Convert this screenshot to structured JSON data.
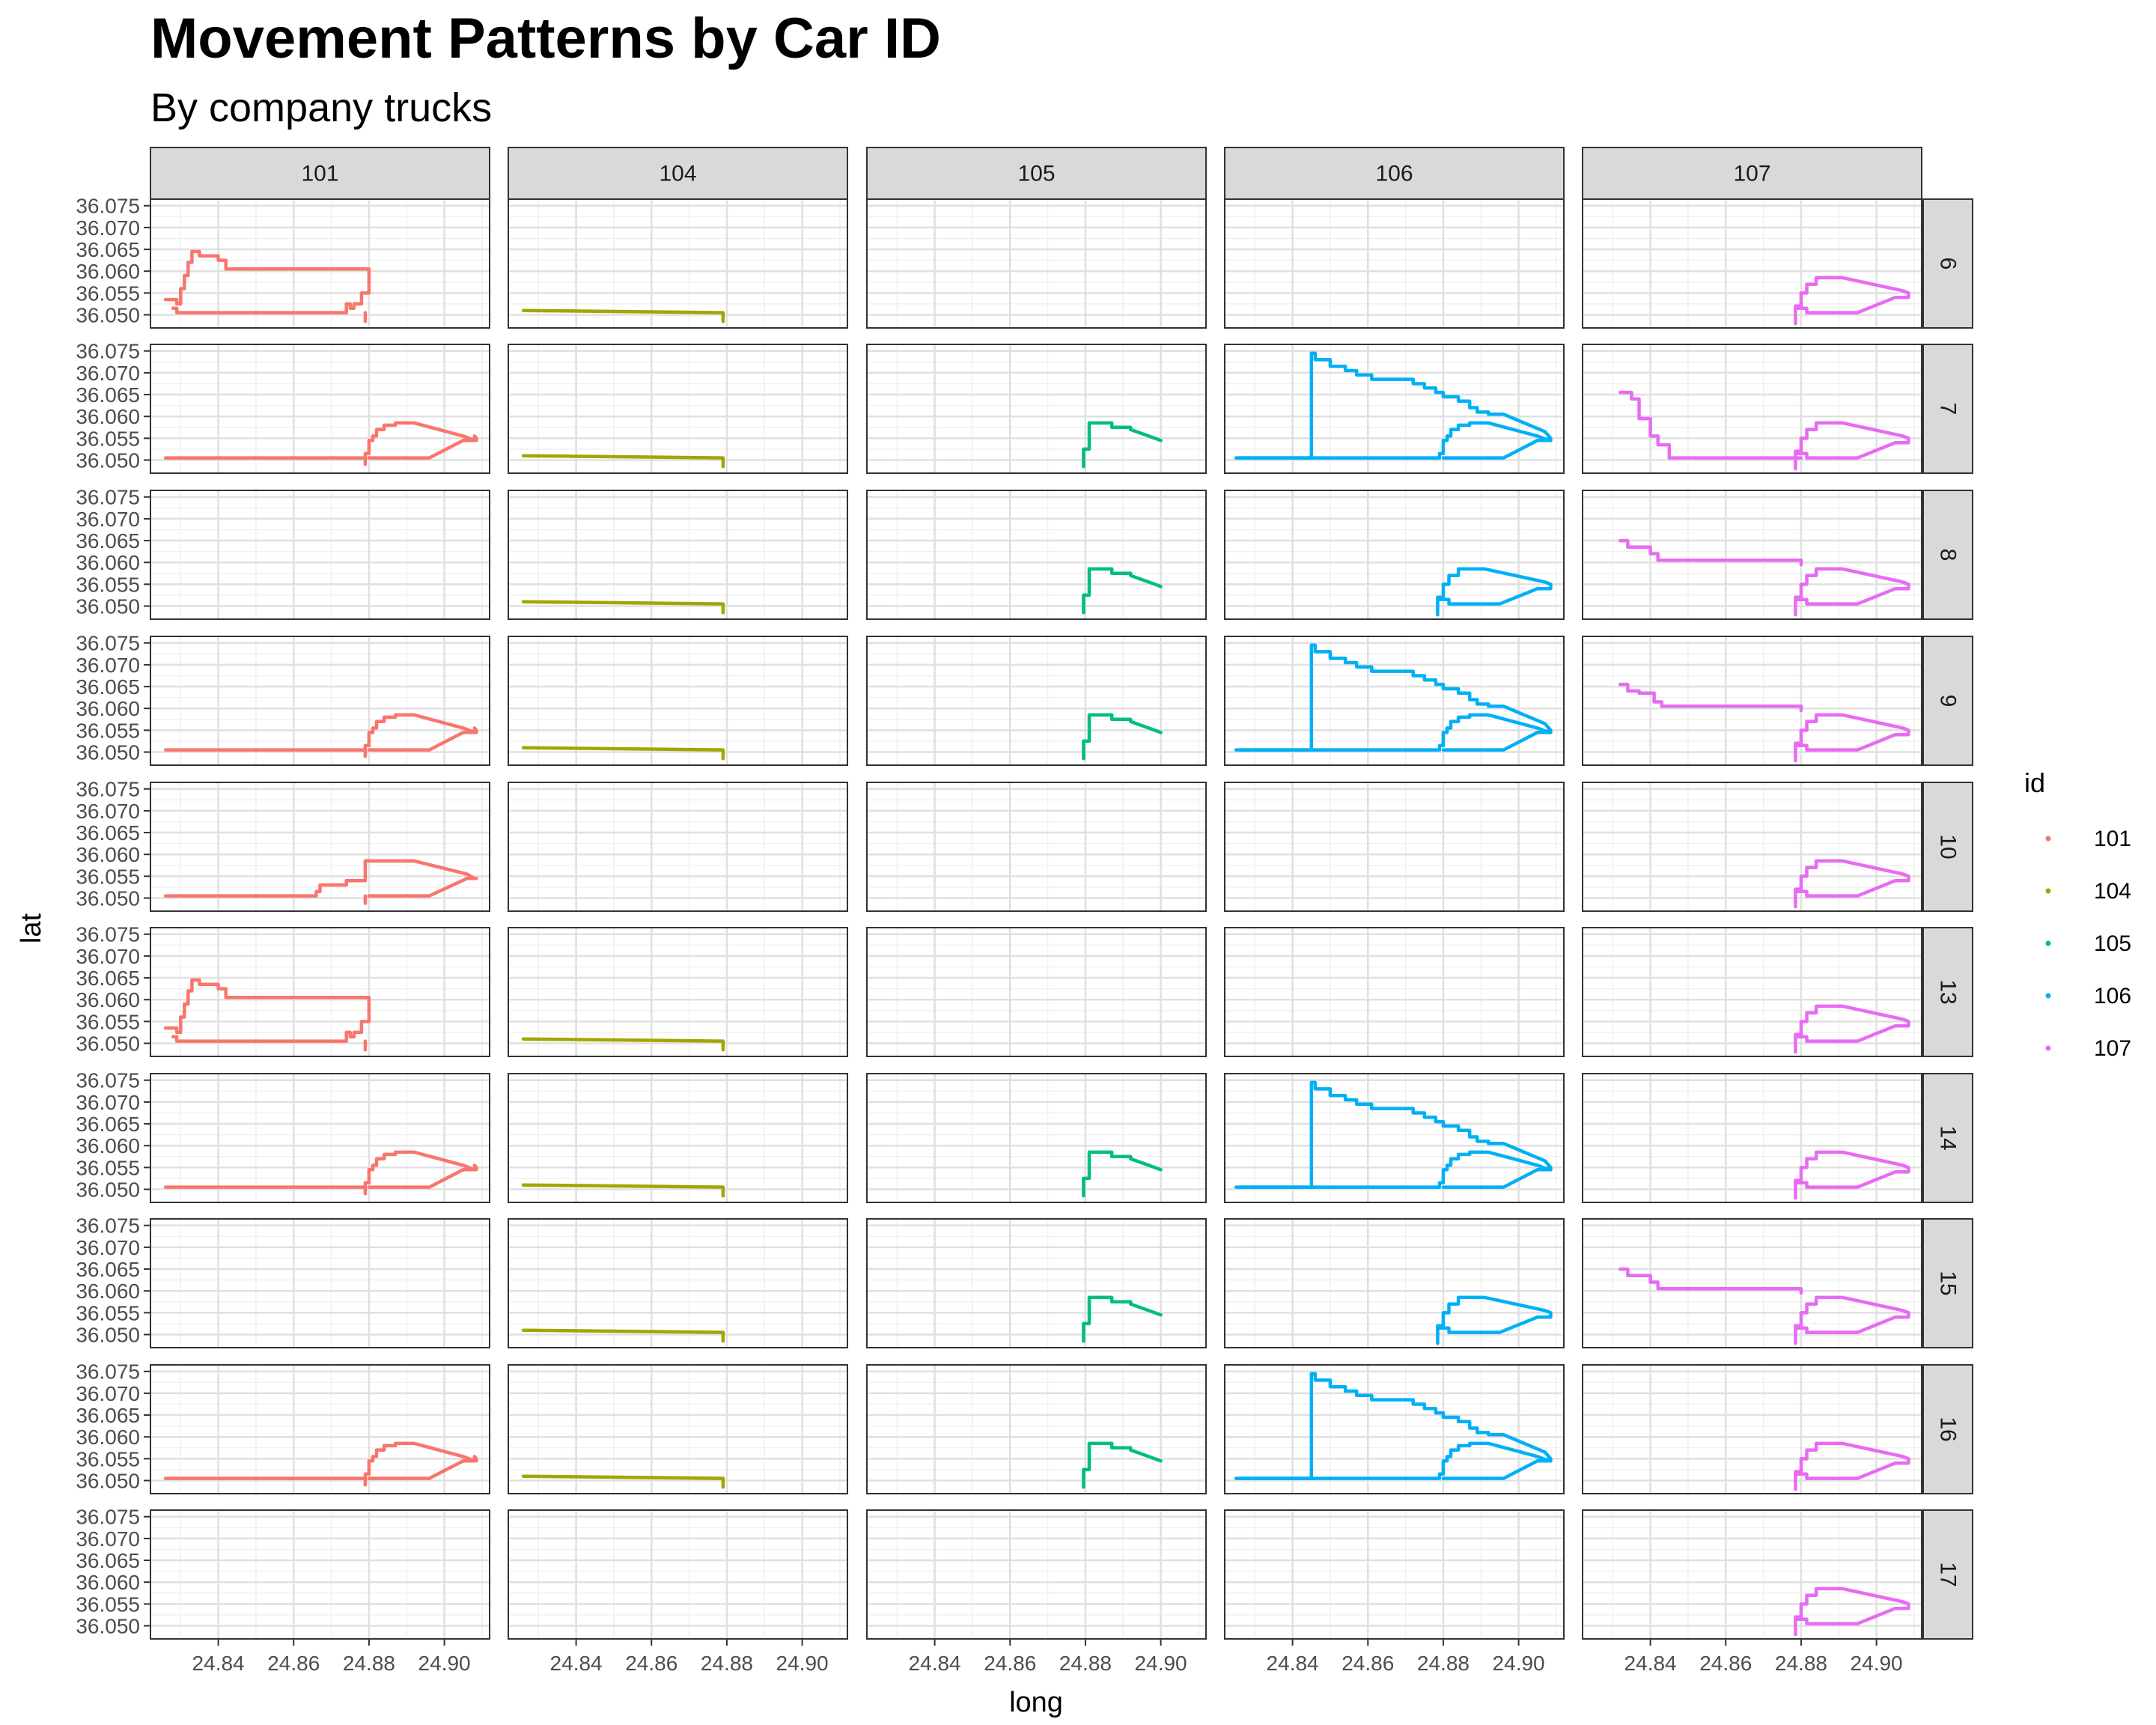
{
  "chart_data": {
    "type": "line",
    "title": "Movement Patterns by Car ID",
    "subtitle": "By company trucks",
    "xlabel": "long",
    "ylabel": "lat",
    "xlim": [
      24.822,
      24.912
    ],
    "ylim": [
      36.047,
      36.0765
    ],
    "x_ticks": [
      "24.84",
      "24.86",
      "24.88",
      "24.90"
    ],
    "y_ticks": [
      "36.050",
      "36.055",
      "36.060",
      "36.065",
      "36.070",
      "36.075"
    ],
    "grid": true,
    "columns": [
      "101",
      "104",
      "105",
      "106",
      "107"
    ],
    "rows": [
      "6",
      "7",
      "8",
      "9",
      "10",
      "13",
      "14",
      "15",
      "16",
      "17"
    ],
    "legend": {
      "title": "id",
      "position": "right",
      "entries": [
        "101",
        "104",
        "105",
        "106",
        "107"
      ]
    },
    "colors": {
      "101": "#F8766D",
      "104": "#A3A500",
      "105": "#00BF7D",
      "106": "#00B0F6",
      "107": "#E76BF3"
    },
    "routes": {
      "A": [
        [
          24.826,
          36.0535
        ],
        [
          24.829,
          36.0535
        ],
        [
          24.829,
          36.0525
        ],
        [
          24.83,
          36.0525
        ],
        [
          24.83,
          36.056
        ],
        [
          24.831,
          36.056
        ],
        [
          24.831,
          36.059
        ],
        [
          24.832,
          36.059
        ],
        [
          24.832,
          36.062
        ],
        [
          24.833,
          36.062
        ],
        [
          24.833,
          36.0645
        ],
        [
          24.835,
          36.0645
        ],
        [
          24.835,
          36.0635
        ],
        [
          24.84,
          36.0635
        ],
        [
          24.84,
          36.0625
        ],
        [
          24.842,
          36.0625
        ],
        [
          24.842,
          36.0605
        ],
        [
          24.88,
          36.0605
        ],
        [
          24.88,
          36.055
        ],
        [
          24.878,
          36.055
        ],
        [
          24.878,
          36.0525
        ],
        [
          24.876,
          36.0525
        ],
        [
          24.876,
          36.0515
        ],
        [
          24.875,
          36.0515
        ],
        [
          24.875,
          36.0525
        ],
        [
          24.874,
          36.0525
        ],
        [
          24.874,
          36.0505
        ],
        [
          24.829,
          36.0505
        ],
        [
          24.829,
          36.0515
        ],
        [
          24.828,
          36.0515
        ]
      ],
      "A_tail": [
        [
          24.879,
          36.0505
        ],
        [
          24.879,
          36.0485
        ]
      ],
      "B": [
        [
          24.826,
          36.0505
        ],
        [
          24.879,
          36.0505
        ],
        [
          24.879,
          36.0515
        ],
        [
          24.88,
          36.0515
        ],
        [
          24.88,
          36.0525
        ],
        [
          24.88,
          36.0545
        ],
        [
          24.881,
          36.0545
        ],
        [
          24.881,
          36.0555
        ],
        [
          24.882,
          36.0555
        ],
        [
          24.882,
          36.057
        ],
        [
          24.884,
          36.057
        ],
        [
          24.884,
          36.058
        ],
        [
          24.887,
          36.058
        ],
        [
          24.887,
          36.0585
        ],
        [
          24.892,
          36.0585
        ],
        [
          24.905,
          36.0555
        ],
        [
          24.908,
          36.0545
        ],
        [
          24.908,
          36.0555
        ],
        [
          24.9085,
          36.055
        ],
        [
          24.9085,
          36.0545
        ],
        [
          24.905,
          36.0545
        ],
        [
          24.896,
          36.0505
        ],
        [
          24.882,
          36.0505
        ],
        [
          24.88,
          36.0505
        ]
      ],
      "B_tail": [
        [
          24.879,
          36.0505
        ],
        [
          24.879,
          36.049
        ]
      ],
      "C": [
        [
          24.826,
          36.051
        ],
        [
          24.879,
          36.0505
        ],
        [
          24.879,
          36.0485
        ]
      ],
      "D": [
        [
          24.8795,
          36.0485
        ],
        [
          24.8795,
          36.0525
        ],
        [
          24.881,
          36.0525
        ],
        [
          24.881,
          36.0585
        ],
        [
          24.887,
          36.0585
        ],
        [
          24.887,
          36.0575
        ],
        [
          24.892,
          36.0575
        ],
        [
          24.892,
          36.057
        ],
        [
          24.9,
          36.0545
        ]
      ],
      "E": [
        [
          24.825,
          36.0505
        ],
        [
          24.845,
          36.0505
        ],
        [
          24.845,
          36.0745
        ],
        [
          24.846,
          36.0745
        ],
        [
          24.846,
          36.073
        ],
        [
          24.85,
          36.073
        ],
        [
          24.85,
          36.0715
        ],
        [
          24.854,
          36.0715
        ],
        [
          24.854,
          36.0705
        ],
        [
          24.857,
          36.0705
        ],
        [
          24.857,
          36.0695
        ],
        [
          24.861,
          36.0695
        ],
        [
          24.861,
          36.0685
        ],
        [
          24.872,
          36.0685
        ],
        [
          24.872,
          36.0675
        ],
        [
          24.875,
          36.0675
        ],
        [
          24.875,
          36.0665
        ],
        [
          24.878,
          36.0665
        ],
        [
          24.878,
          36.0655
        ],
        [
          24.88,
          36.0655
        ],
        [
          24.88,
          36.0645
        ],
        [
          24.884,
          36.0645
        ],
        [
          24.884,
          36.0635
        ],
        [
          24.887,
          36.0635
        ],
        [
          24.887,
          36.062
        ],
        [
          24.889,
          36.062
        ],
        [
          24.889,
          36.061
        ],
        [
          24.892,
          36.061
        ],
        [
          24.892,
          36.0605
        ],
        [
          24.896,
          36.0605
        ],
        [
          24.907,
          36.0565
        ],
        [
          24.908,
          36.0555
        ],
        [
          24.9085,
          36.0545
        ]
      ],
      "F": [
        [
          24.8785,
          36.05
        ],
        [
          24.8785,
          36.052
        ],
        [
          24.88,
          36.052
        ],
        [
          24.88,
          36.055
        ],
        [
          24.8815,
          36.055
        ],
        [
          24.8815,
          36.057
        ],
        [
          24.884,
          36.057
        ],
        [
          24.884,
          36.0585
        ],
        [
          24.891,
          36.0585
        ],
        [
          24.907,
          36.0555
        ],
        [
          24.9085,
          36.055
        ],
        [
          24.9085,
          36.054
        ],
        [
          24.905,
          36.054
        ],
        [
          24.895,
          36.0505
        ],
        [
          24.8815,
          36.0505
        ],
        [
          24.8815,
          36.0515
        ],
        [
          24.8785,
          36.0515
        ]
      ],
      "F_tail": [
        [
          24.8785,
          36.05
        ],
        [
          24.8785,
          36.048
        ]
      ],
      "G": [
        [
          24.832,
          36.065
        ],
        [
          24.834,
          36.065
        ],
        [
          24.834,
          36.0635
        ],
        [
          24.84,
          36.0635
        ],
        [
          24.84,
          36.062
        ],
        [
          24.842,
          36.062
        ],
        [
          24.842,
          36.0605
        ],
        [
          24.88,
          36.0605
        ],
        [
          24.88,
          36.0595
        ]
      ],
      "H": [
        [
          24.826,
          36.0505
        ],
        [
          24.866,
          36.0505
        ],
        [
          24.866,
          36.0515
        ],
        [
          24.867,
          36.0515
        ],
        [
          24.867,
          36.053
        ],
        [
          24.874,
          36.053
        ],
        [
          24.874,
          36.054
        ],
        [
          24.879,
          36.054
        ],
        [
          24.879,
          36.0585
        ],
        [
          24.892,
          36.0585
        ],
        [
          24.906,
          36.0555
        ],
        [
          24.908,
          36.0545
        ],
        [
          24.9085,
          36.0545
        ],
        [
          24.906,
          36.0545
        ],
        [
          24.896,
          36.0505
        ],
        [
          24.885,
          36.0505
        ],
        [
          24.88,
          36.0505
        ]
      ],
      "H_tail": [
        [
          24.879,
          36.0505
        ],
        [
          24.879,
          36.0488
        ]
      ],
      "I": [
        [
          24.832,
          36.0655
        ],
        [
          24.835,
          36.0655
        ],
        [
          24.835,
          36.064
        ],
        [
          24.837,
          36.064
        ],
        [
          24.837,
          36.0595
        ],
        [
          24.84,
          36.0595
        ],
        [
          24.84,
          36.0555
        ],
        [
          24.842,
          36.0555
        ],
        [
          24.842,
          36.0535
        ],
        [
          24.845,
          36.0535
        ],
        [
          24.845,
          36.0505
        ],
        [
          24.88,
          36.0505
        ]
      ],
      "J": [
        [
          24.832,
          36.0655
        ],
        [
          24.834,
          36.0655
        ],
        [
          24.834,
          36.064
        ],
        [
          24.837,
          36.064
        ],
        [
          24.837,
          36.0635
        ],
        [
          24.841,
          36.0635
        ],
        [
          24.841,
          36.0615
        ],
        [
          24.843,
          36.0615
        ],
        [
          24.843,
          36.0605
        ],
        [
          24.88,
          36.0605
        ],
        [
          24.88,
          36.0595
        ]
      ],
      "K": [
        [
          24.8785,
          36.048
        ],
        [
          24.8785,
          36.052
        ],
        [
          24.88,
          36.052
        ],
        [
          24.88,
          36.055
        ],
        [
          24.8815,
          36.055
        ],
        [
          24.8815,
          36.057
        ],
        [
          24.884,
          36.057
        ],
        [
          24.884,
          36.0585
        ],
        [
          24.891,
          36.0585
        ],
        [
          24.907,
          36.0555
        ],
        [
          24.9085,
          36.055
        ],
        [
          24.9085,
          36.054
        ],
        [
          24.905,
          36.054
        ],
        [
          24.895,
          36.0505
        ],
        [
          24.8815,
          36.0505
        ],
        [
          24.8815,
          36.0515
        ],
        [
          24.8785,
          36.0515
        ]
      ]
    },
    "panels": [
      {
        "col": "101",
        "row": "6",
        "routes": [
          "A",
          "A_tail"
        ]
      },
      {
        "col": "101",
        "row": "7",
        "routes": [
          "B",
          "B_tail"
        ]
      },
      {
        "col": "101",
        "row": "9",
        "routes": [
          "B",
          "B_tail"
        ]
      },
      {
        "col": "101",
        "row": "10",
        "routes": [
          "H",
          "H_tail"
        ]
      },
      {
        "col": "101",
        "row": "13",
        "routes": [
          "A",
          "A_tail"
        ]
      },
      {
        "col": "101",
        "row": "14",
        "routes": [
          "B",
          "B_tail"
        ]
      },
      {
        "col": "101",
        "row": "16",
        "routes": [
          "B",
          "B_tail"
        ]
      },
      {
        "col": "104",
        "row": "6",
        "routes": [
          "C"
        ]
      },
      {
        "col": "104",
        "row": "7",
        "routes": [
          "C"
        ]
      },
      {
        "col": "104",
        "row": "8",
        "routes": [
          "C"
        ]
      },
      {
        "col": "104",
        "row": "9",
        "routes": [
          "C"
        ]
      },
      {
        "col": "104",
        "row": "13",
        "routes": [
          "C"
        ]
      },
      {
        "col": "104",
        "row": "14",
        "routes": [
          "C"
        ]
      },
      {
        "col": "104",
        "row": "15",
        "routes": [
          "C"
        ]
      },
      {
        "col": "104",
        "row": "16",
        "routes": [
          "C"
        ]
      },
      {
        "col": "105",
        "row": "7",
        "routes": [
          "D"
        ]
      },
      {
        "col": "105",
        "row": "8",
        "routes": [
          "D"
        ]
      },
      {
        "col": "105",
        "row": "9",
        "routes": [
          "D"
        ]
      },
      {
        "col": "105",
        "row": "14",
        "routes": [
          "D"
        ]
      },
      {
        "col": "105",
        "row": "15",
        "routes": [
          "D"
        ]
      },
      {
        "col": "105",
        "row": "16",
        "routes": [
          "D"
        ]
      },
      {
        "col": "106",
        "row": "7",
        "routes": [
          "E",
          "B"
        ]
      },
      {
        "col": "106",
        "row": "8",
        "routes": [
          "F",
          "F_tail"
        ]
      },
      {
        "col": "106",
        "row": "9",
        "routes": [
          "E",
          "B"
        ]
      },
      {
        "col": "106",
        "row": "14",
        "routes": [
          "E",
          "B"
        ]
      },
      {
        "col": "106",
        "row": "15",
        "routes": [
          "F",
          "F_tail"
        ]
      },
      {
        "col": "106",
        "row": "16",
        "routes": [
          "E",
          "B"
        ]
      },
      {
        "col": "107",
        "row": "6",
        "routes": [
          "K"
        ]
      },
      {
        "col": "107",
        "row": "7",
        "routes": [
          "I",
          "K"
        ]
      },
      {
        "col": "107",
        "row": "8",
        "routes": [
          "G",
          "K"
        ]
      },
      {
        "col": "107",
        "row": "9",
        "routes": [
          "J",
          "K"
        ]
      },
      {
        "col": "107",
        "row": "10",
        "routes": [
          "K"
        ]
      },
      {
        "col": "107",
        "row": "13",
        "routes": [
          "K"
        ]
      },
      {
        "col": "107",
        "row": "14",
        "routes": [
          "K"
        ]
      },
      {
        "col": "107",
        "row": "15",
        "routes": [
          "G",
          "K"
        ]
      },
      {
        "col": "107",
        "row": "16",
        "routes": [
          "K"
        ]
      },
      {
        "col": "107",
        "row": "17",
        "routes": [
          "K"
        ]
      }
    ]
  }
}
